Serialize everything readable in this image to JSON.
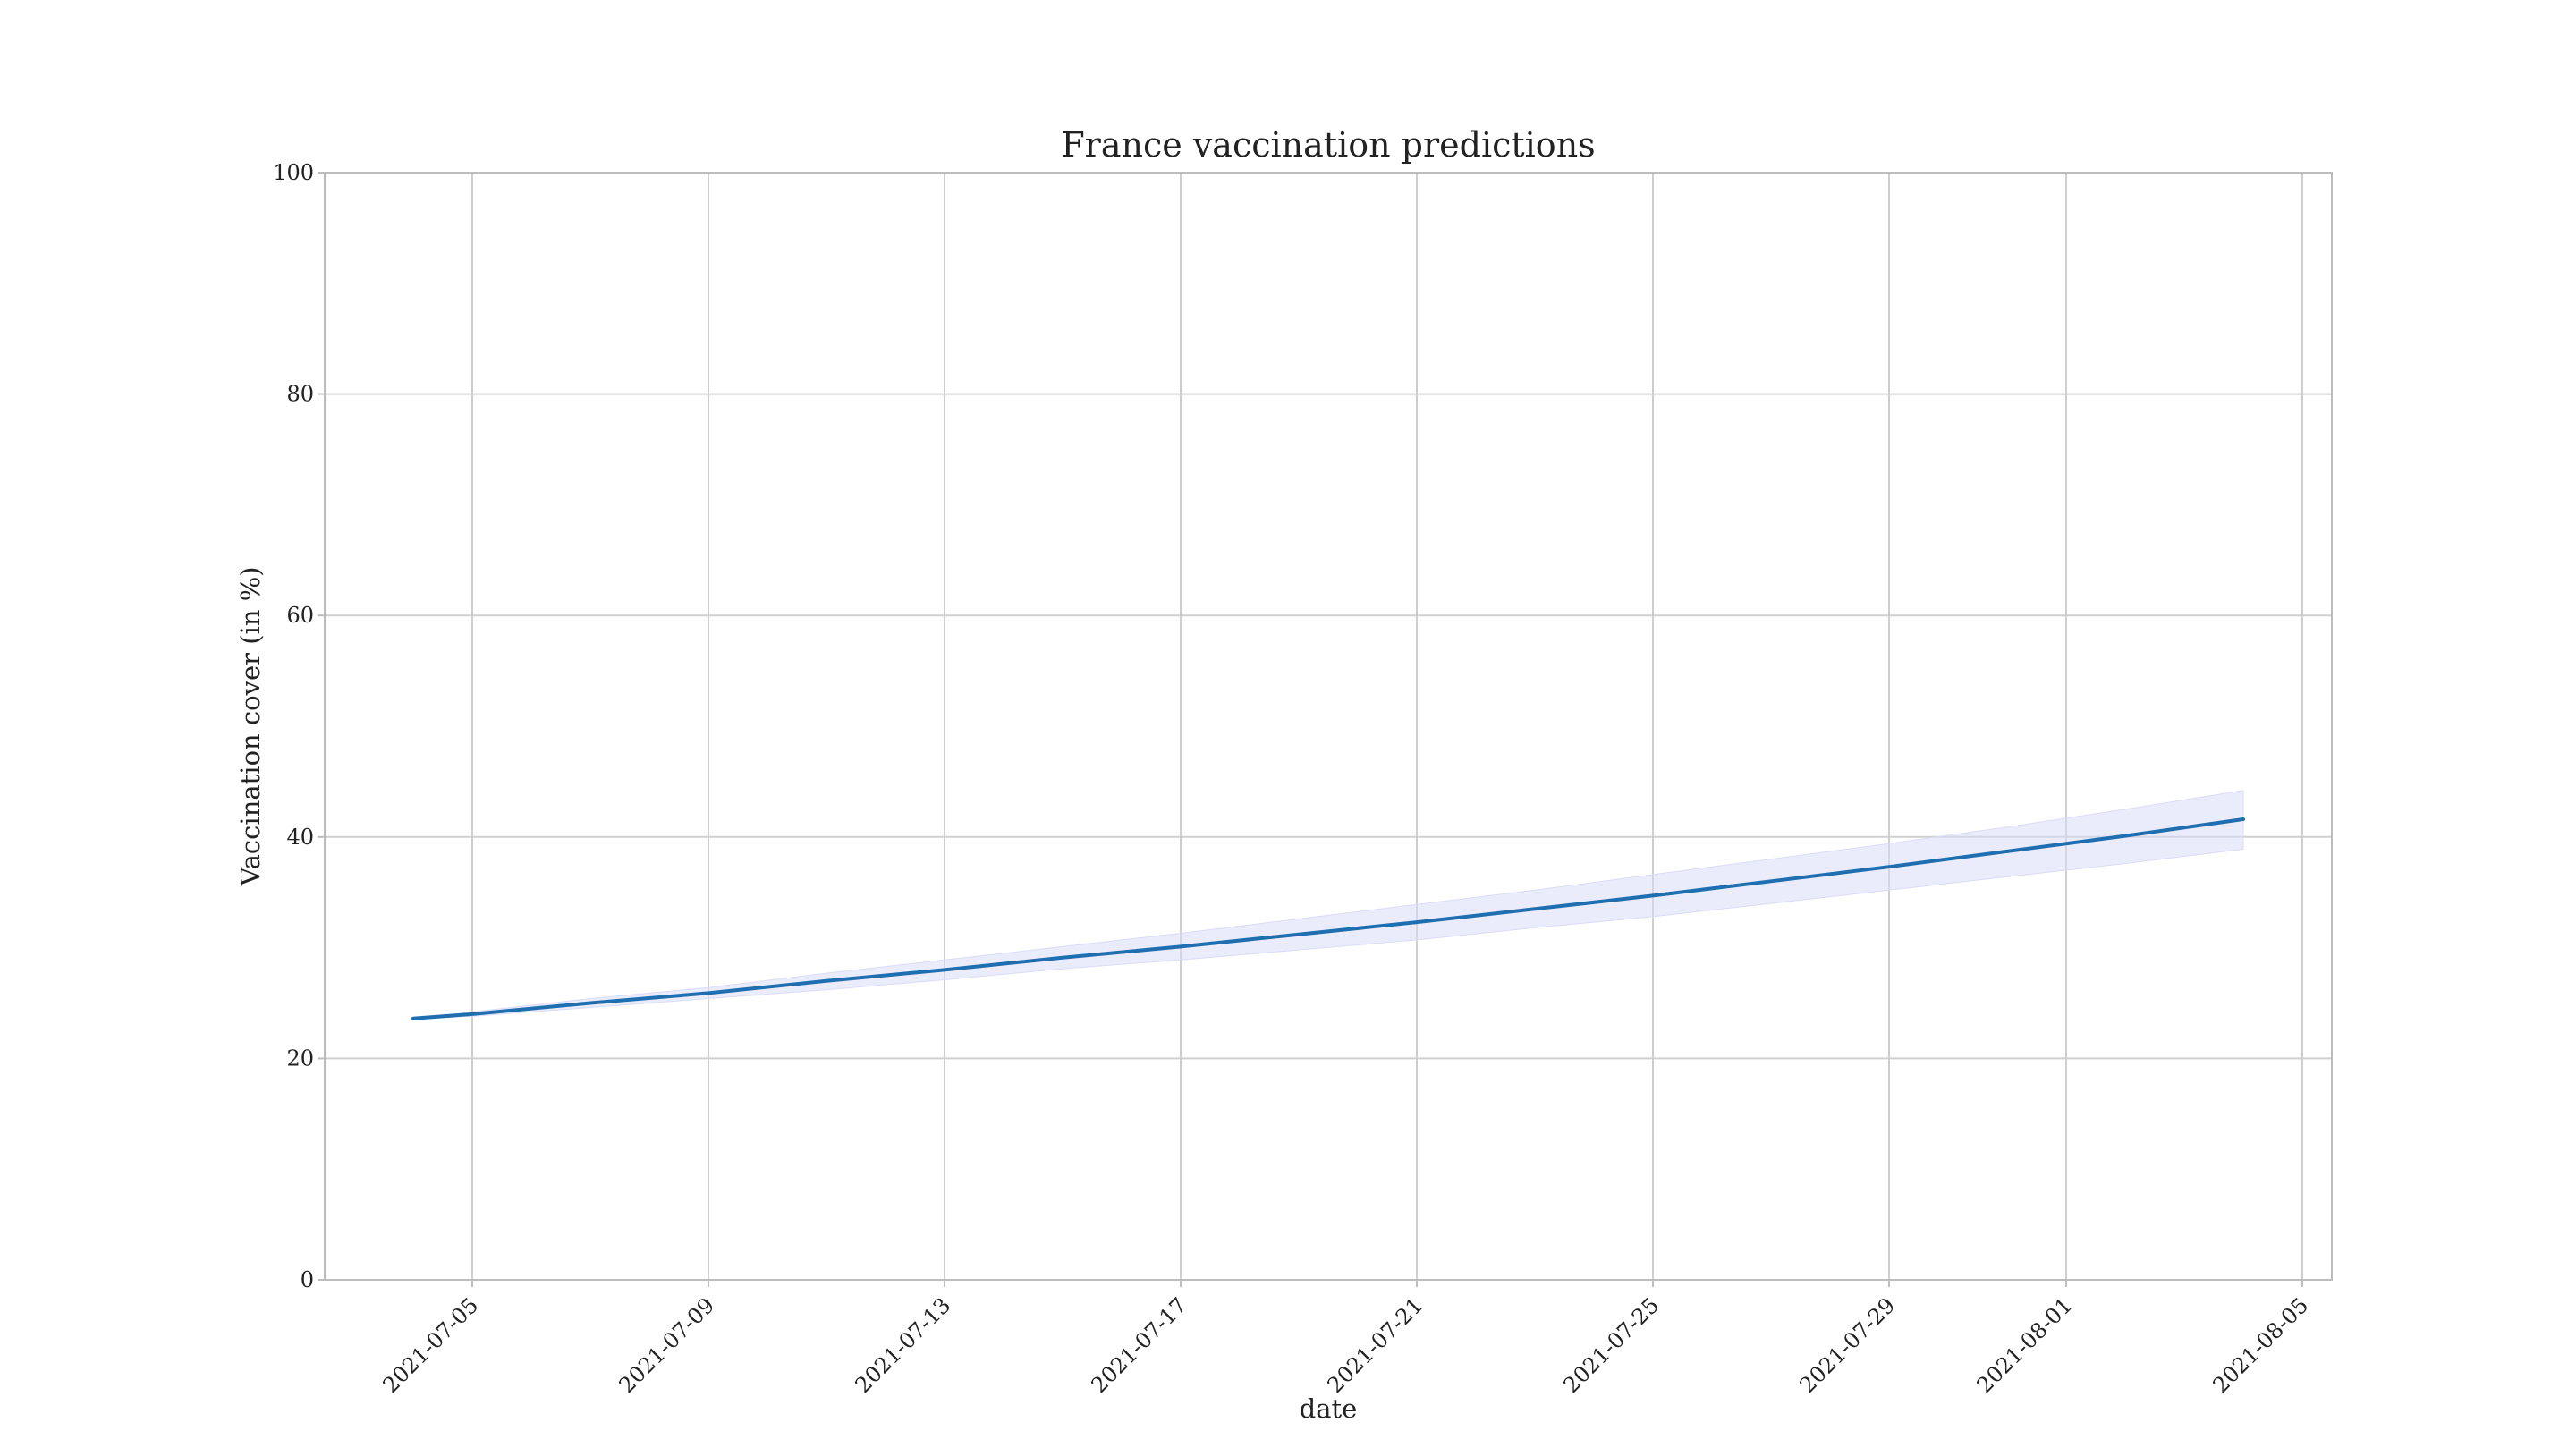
{
  "chart_data": {
    "type": "line",
    "title": "France vaccination predictions",
    "xlabel": "date",
    "ylabel": "Vaccination cover (in %)",
    "xlim": [
      "2021-07-02T12:00",
      "2021-08-05T12:00"
    ],
    "ylim": [
      0,
      100
    ],
    "x_ticks": [
      "2021-07-05",
      "2021-07-09",
      "2021-07-13",
      "2021-07-17",
      "2021-07-21",
      "2021-07-25",
      "2021-07-29",
      "2021-08-01",
      "2021-08-05"
    ],
    "y_ticks": [
      0,
      20,
      40,
      60,
      80,
      100
    ],
    "grid": true,
    "colors": {
      "line": "#1f6fb0",
      "band": "#d9dcf7"
    },
    "series": [
      {
        "x": [
          "2021-07-04",
          "2021-07-05",
          "2021-07-07",
          "2021-07-09",
          "2021-07-11",
          "2021-07-13",
          "2021-07-15",
          "2021-07-17",
          "2021-07-19",
          "2021-07-21",
          "2021-07-23",
          "2021-07-25",
          "2021-07-27",
          "2021-07-29",
          "2021-07-31",
          "2021-08-02",
          "2021-08-04"
        ],
        "y": [
          23.6,
          24.0,
          25.0,
          25.9,
          27.0,
          28.0,
          29.1,
          30.1,
          31.2,
          32.3,
          33.5,
          34.7,
          36.0,
          37.3,
          38.7,
          40.1,
          41.6
        ],
        "lower": [
          23.6,
          23.8,
          24.6,
          25.4,
          26.2,
          27.1,
          28.1,
          28.9,
          29.8,
          30.7,
          31.8,
          32.8,
          34.0,
          35.2,
          36.4,
          37.6,
          38.9
        ],
        "upper": [
          23.6,
          24.2,
          25.4,
          26.4,
          27.7,
          28.9,
          30.1,
          31.3,
          32.6,
          33.9,
          35.2,
          36.6,
          38.0,
          39.4,
          40.9,
          42.5,
          44.2
        ]
      }
    ]
  }
}
